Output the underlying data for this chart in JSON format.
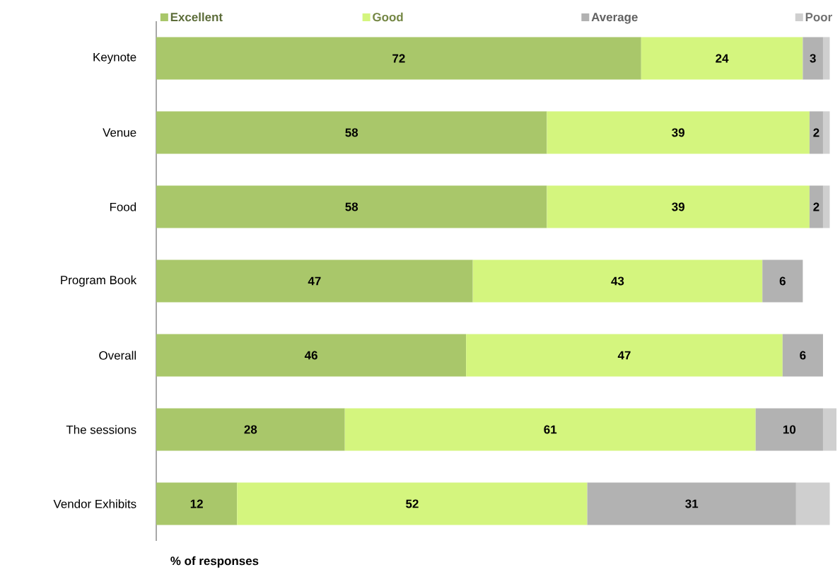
{
  "chart_data": {
    "type": "bar",
    "orientation": "horizontal",
    "stacked": true,
    "legend": "top",
    "xlabel": "% of responses",
    "categories": [
      "Keynote",
      "Venue",
      "Food",
      "Program Book",
      "Overall",
      "The sessions",
      "Vendor Exhibits"
    ],
    "series": [
      {
        "name": "Excellent",
        "color": "#a9c76a",
        "values": [
          72,
          58,
          58,
          47,
          46,
          28,
          12
        ],
        "value_labels": [
          "72",
          "58",
          "58",
          "47",
          "46",
          "28",
          "12"
        ]
      },
      {
        "name": "Good",
        "color": "#d4f57e",
        "values": [
          24,
          39,
          39,
          43,
          47,
          61,
          52
        ],
        "value_labels": [
          "24",
          "39",
          "39",
          "43",
          "47",
          "61",
          "52"
        ]
      },
      {
        "name": "Average",
        "color": "#b2b2b2",
        "values": [
          3,
          2,
          2,
          6,
          6,
          10,
          31
        ],
        "value_labels": [
          "3",
          "2",
          "2",
          "6",
          "6",
          "10",
          "31"
        ]
      },
      {
        "name": "Poor",
        "color": "#cfcfcf",
        "values": [
          1,
          1,
          1,
          null,
          null,
          2,
          5
        ]
      }
    ]
  }
}
